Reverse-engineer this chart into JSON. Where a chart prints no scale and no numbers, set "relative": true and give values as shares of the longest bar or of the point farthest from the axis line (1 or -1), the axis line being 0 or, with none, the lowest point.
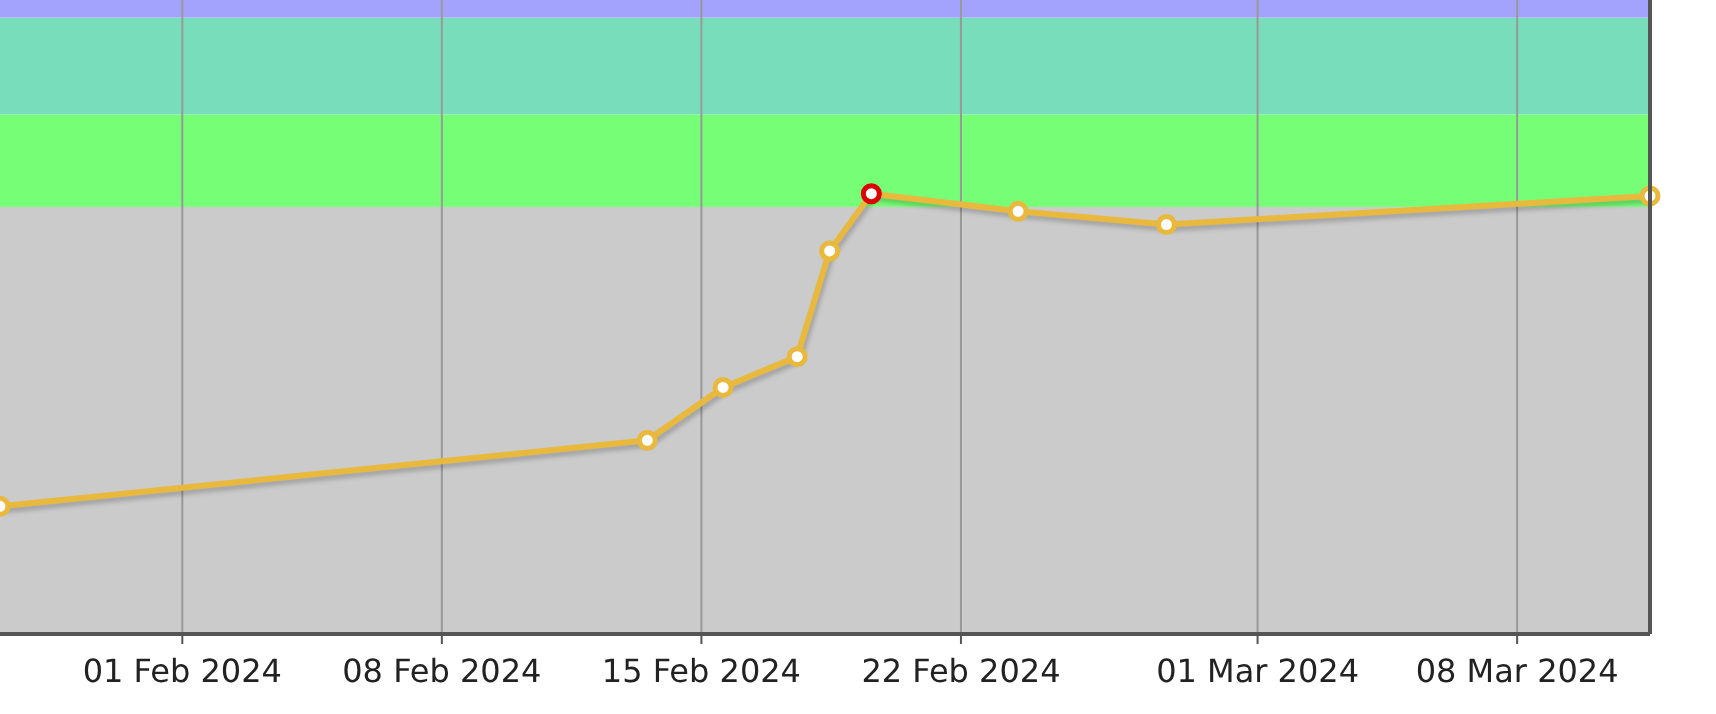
{
  "chart_data": {
    "type": "line",
    "relative": true,
    "xlim": [
      "2024-01-27T02:00",
      "2024-03-11T14:00"
    ],
    "xticks": [
      {
        "value": "2024-02-01",
        "label": "01 Feb 2024"
      },
      {
        "value": "2024-02-08",
        "label": "08 Feb 2024"
      },
      {
        "value": "2024-02-15",
        "label": "15 Feb 2024"
      },
      {
        "value": "2024-02-22",
        "label": "22 Feb 2024"
      },
      {
        "value": "2024-03-01",
        "label": "01 Mar 2024"
      },
      {
        "value": "2024-03-08",
        "label": "08 Mar 2024"
      }
    ],
    "x": [
      "2024-01-27T02:00",
      "2024-02-13T13:00",
      "2024-02-15T14:00",
      "2024-02-17T14:00",
      "2024-02-18T11:00",
      "2024-02-19T14:00",
      "2024-02-23T13:00",
      "2024-02-27T13:00",
      "2024-03-11T14:00"
    ],
    "series": [
      {
        "color": "#e8b93c",
        "colors": [
          "#e8b93c",
          "#e8b93c",
          "#e8b93c",
          "#e8b93c",
          "#e8b93c",
          "#dd0000",
          "#e8b93c",
          "#e8b93c",
          "#e8b93c"
        ],
        "values": [
          0.29,
          0.44,
          0.56,
          0.63,
          0.87,
          1,
          0.96,
          0.93,
          0.995
        ]
      }
    ],
    "bands": [
      {
        "axis": "y",
        "from": 0,
        "to": 0.97,
        "color": "#cbcbcb"
      },
      {
        "axis": "y",
        "from": 0.97,
        "to": 1.18,
        "color": "#77fe77"
      },
      {
        "axis": "y",
        "from": 1.18,
        "to": 1.4,
        "color": "#77ddbb"
      },
      {
        "axis": "y",
        "from": 1.4,
        "to": 1.44,
        "color": "#a3a3fe"
      }
    ],
    "grid": "x",
    "marker": "circle",
    "line_style": "solid",
    "tick_labels": "x"
  }
}
